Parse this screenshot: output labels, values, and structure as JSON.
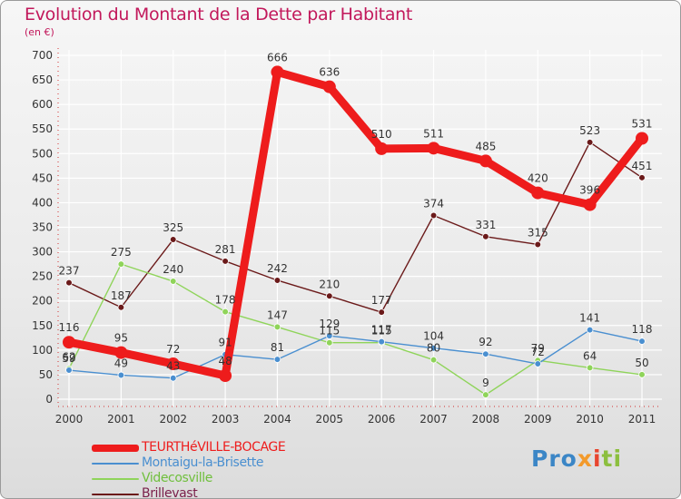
{
  "chart_data": {
    "type": "line",
    "title": "Evolution du Montant de la Dette par Habitant",
    "subtitle": "(en €)",
    "x": [
      "2000",
      "2001",
      "2002",
      "2003",
      "2004",
      "2005",
      "2006",
      "2007",
      "2008",
      "2009",
      "2010",
      "2011"
    ],
    "ylim": [
      0,
      700
    ],
    "yticks": [
      0,
      50,
      100,
      150,
      200,
      250,
      300,
      350,
      400,
      450,
      500,
      550,
      600,
      650,
      700
    ],
    "grid": true,
    "legend_position": "bottom-left",
    "series": [
      {
        "name": "TEURTHéVILLE-BOCAGE",
        "color": "#ee1c1c",
        "values": [
          116,
          95,
          72,
          48,
          666,
          636,
          510,
          511,
          485,
          420,
          396,
          531
        ]
      },
      {
        "name": "Montaigu-la-Brisette",
        "color": "#4a8fd0",
        "values": [
          59,
          49,
          43,
          91,
          81,
          129,
          117,
          104,
          92,
          72,
          141,
          118
        ]
      },
      {
        "name": "Videcosville",
        "color": "#8fd45a",
        "values": [
          62,
          275,
          240,
          178,
          147,
          115,
          115,
          80,
          9,
          79,
          64,
          50
        ]
      },
      {
        "name": "Brillevast",
        "color": "#6b1a1a",
        "values": [
          237,
          187,
          325,
          281,
          242,
          210,
          177,
          374,
          331,
          315,
          523,
          451
        ]
      }
    ]
  },
  "logo": {
    "p1": "Pro",
    "p2": "x",
    "p3": "i",
    "p4": "ti"
  }
}
